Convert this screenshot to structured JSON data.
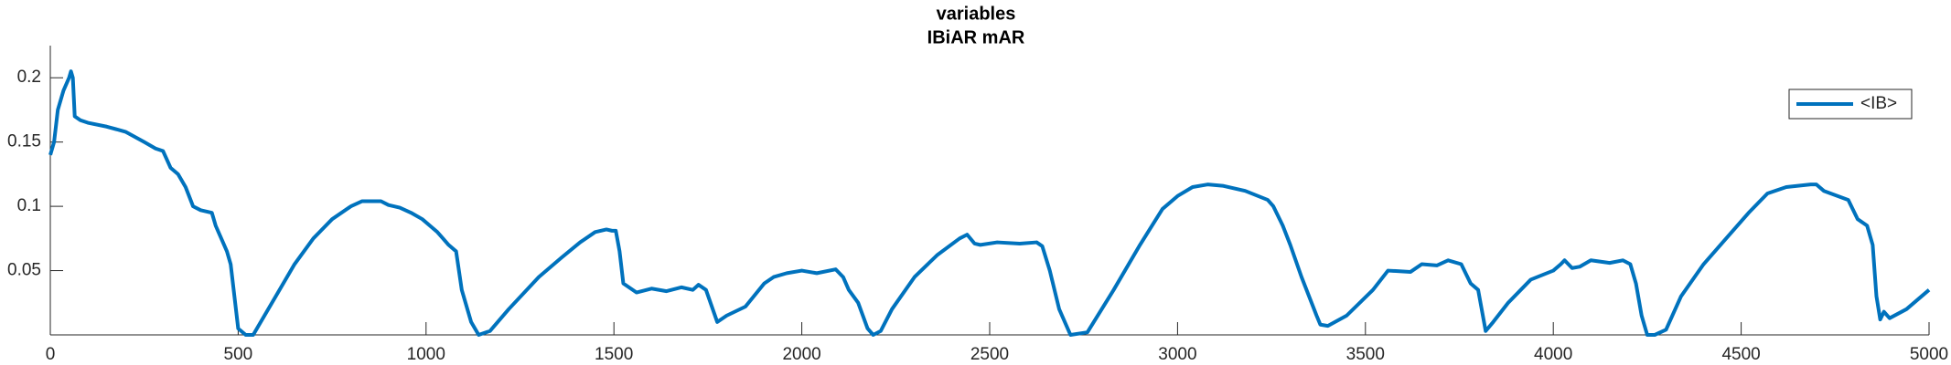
{
  "chart_data": {
    "type": "line",
    "title": "variables",
    "subtitle": "IBiAR mAR",
    "x": [
      0,
      10,
      20,
      35,
      50,
      55,
      60,
      65,
      80,
      100,
      150,
      200,
      250,
      280,
      300,
      320,
      340,
      360,
      380,
      400,
      430,
      440,
      455,
      470,
      480,
      490,
      500,
      520,
      540,
      560,
      600,
      650,
      700,
      750,
      800,
      830,
      880,
      900,
      930,
      960,
      990,
      1010,
      1030,
      1045,
      1060,
      1080,
      1095,
      1120,
      1140,
      1170,
      1220,
      1300,
      1360,
      1410,
      1450,
      1480,
      1495,
      1505,
      1515,
      1525,
      1560,
      1600,
      1640,
      1680,
      1710,
      1725,
      1745,
      1775,
      1800,
      1850,
      1900,
      1925,
      1960,
      2000,
      2040,
      2090,
      2110,
      2125,
      2150,
      2175,
      2190,
      2210,
      2240,
      2300,
      2360,
      2420,
      2440,
      2460,
      2475,
      2520,
      2580,
      2625,
      2640,
      2660,
      2685,
      2715,
      2760,
      2830,
      2900,
      2960,
      3000,
      3040,
      3080,
      3120,
      3180,
      3240,
      3255,
      3280,
      3300,
      3330,
      3350,
      3370,
      3380,
      3400,
      3450,
      3520,
      3560,
      3620,
      3650,
      3690,
      3720,
      3755,
      3780,
      3800,
      3820,
      3840,
      3880,
      3940,
      4000,
      4020,
      4030,
      4050,
      4070,
      4100,
      4150,
      4185,
      4205,
      4220,
      4235,
      4250,
      4270,
      4300,
      4340,
      4400,
      4460,
      4520,
      4570,
      4620,
      4685,
      4700,
      4720,
      4785,
      4810,
      4835,
      4850,
      4860,
      4870,
      4880,
      4895,
      4940,
      5000
    ],
    "series": [
      {
        "name": "<IB>",
        "color": "#0072bd",
        "values": [
          0.14,
          0.15,
          0.175,
          0.19,
          0.2,
          0.205,
          0.2,
          0.17,
          0.167,
          0.165,
          0.162,
          0.158,
          0.15,
          0.145,
          0.143,
          0.13,
          0.125,
          0.115,
          0.1,
          0.097,
          0.095,
          0.085,
          0.075,
          0.065,
          0.055,
          0.03,
          0.005,
          0,
          0,
          0.01,
          0.03,
          0.055,
          0.075,
          0.09,
          0.1,
          0.104,
          0.104,
          0.101,
          0.099,
          0.095,
          0.09,
          0.085,
          0.08,
          0.075,
          0.07,
          0.065,
          0.035,
          0.01,
          0,
          0.003,
          0.02,
          0.045,
          0.06,
          0.072,
          0.08,
          0.082,
          0.081,
          0.081,
          0.065,
          0.04,
          0.033,
          0.036,
          0.034,
          0.037,
          0.035,
          0.039,
          0.035,
          0.01,
          0.015,
          0.022,
          0.04,
          0.045,
          0.048,
          0.05,
          0.048,
          0.051,
          0.045,
          0.035,
          0.025,
          0.005,
          0,
          0.003,
          0.02,
          0.045,
          0.062,
          0.075,
          0.078,
          0.071,
          0.07,
          0.072,
          0.071,
          0.072,
          0.069,
          0.05,
          0.02,
          0,
          0.002,
          0.035,
          0.07,
          0.098,
          0.108,
          0.115,
          0.117,
          0.116,
          0.112,
          0.105,
          0.1,
          0.085,
          0.07,
          0.045,
          0.03,
          0.015,
          0.008,
          0.007,
          0.015,
          0.035,
          0.05,
          0.049,
          0.055,
          0.054,
          0.058,
          0.055,
          0.04,
          0.035,
          0.003,
          0.01,
          0.025,
          0.043,
          0.05,
          0.055,
          0.058,
          0.052,
          0.053,
          0.058,
          0.056,
          0.058,
          0.055,
          0.04,
          0.015,
          0,
          0,
          0.004,
          0.03,
          0.055,
          0.075,
          0.095,
          0.11,
          0.115,
          0.117,
          0.117,
          0.112,
          0.105,
          0.09,
          0.085,
          0.07,
          0.03,
          0.012,
          0.018,
          0.013,
          0.02,
          0.035
        ]
      }
    ],
    "xlim": [
      0,
      5000
    ],
    "xticks": [
      0,
      500,
      1000,
      1500,
      2000,
      2500,
      3000,
      3500,
      4000,
      4500,
      5000
    ],
    "ylim": [
      0,
      0.225
    ],
    "yticks": [
      0.05,
      0.1,
      0.15,
      0.2
    ],
    "legend": "northeast"
  }
}
